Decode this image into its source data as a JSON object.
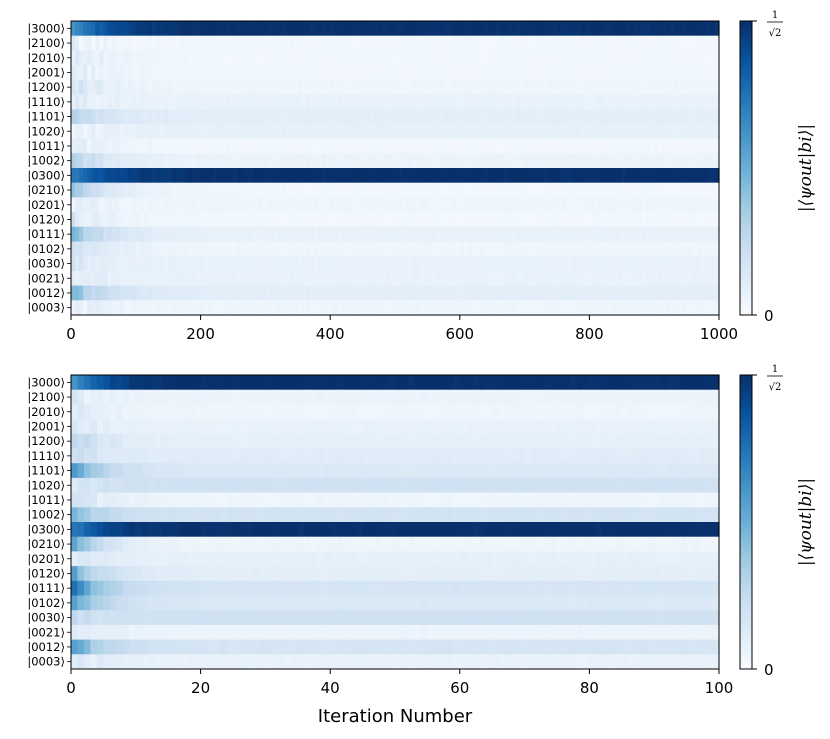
{
  "chart_data": [
    {
      "type": "heatmap",
      "title": "",
      "xlabel": "",
      "xlim": [
        0,
        1000
      ],
      "x_ticks": [
        "0",
        "200",
        "400",
        "600",
        "800",
        "1000"
      ],
      "y_categories": [
        "|3000⟩",
        "|2100⟩",
        "|2010⟩",
        "|2001⟩",
        "|1200⟩",
        "|1110⟩",
        "|1101⟩",
        "|1020⟩",
        "|1011⟩",
        "|1002⟩",
        "|0300⟩",
        "|0210⟩",
        "|0201⟩",
        "|0120⟩",
        "|0111⟩",
        "|0102⟩",
        "|0030⟩",
        "|0021⟩",
        "|0012⟩",
        "|0003⟩"
      ],
      "final_values": [
        0.71,
        0.02,
        0.02,
        0.02,
        0.03,
        0.05,
        0.07,
        0.06,
        0.02,
        0.04,
        0.71,
        0.02,
        0.03,
        0.02,
        0.05,
        0.03,
        0.05,
        0.05,
        0.07,
        0.03
      ],
      "initial_values": [
        0.45,
        0.05,
        0.1,
        0.08,
        0.12,
        0.07,
        0.2,
        0.05,
        0.08,
        0.22,
        0.5,
        0.25,
        0.06,
        0.1,
        0.3,
        0.15,
        0.1,
        0.08,
        0.3,
        0.06
      ],
      "colorbar": {
        "label": "|⟨ψout|bi⟩|",
        "min_label": "0",
        "max_label_num": "1",
        "max_label_den": "√2",
        "range": [
          0,
          0.7071
        ],
        "colormap": "Blues"
      }
    },
    {
      "type": "heatmap",
      "title": "",
      "xlabel": "Iteration Number",
      "xlim": [
        0,
        100
      ],
      "x_ticks": [
        "0",
        "20",
        "40",
        "60",
        "80",
        "100"
      ],
      "y_categories": [
        "|3000⟩",
        "|2100⟩",
        "|2010⟩",
        "|2001⟩",
        "|1200⟩",
        "|1110⟩",
        "|1101⟩",
        "|1020⟩",
        "|1011⟩",
        "|1002⟩",
        "|0300⟩",
        "|0210⟩",
        "|0201⟩",
        "|0120⟩",
        "|0111⟩",
        "|0102⟩",
        "|0030⟩",
        "|0021⟩",
        "|0012⟩",
        "|0003⟩"
      ],
      "final_values": [
        0.71,
        0.04,
        0.03,
        0.05,
        0.06,
        0.08,
        0.1,
        0.14,
        0.03,
        0.13,
        0.71,
        0.03,
        0.06,
        0.07,
        0.12,
        0.1,
        0.14,
        0.04,
        0.12,
        0.05
      ],
      "initial_values": [
        0.45,
        0.08,
        0.12,
        0.1,
        0.2,
        0.15,
        0.4,
        0.12,
        0.15,
        0.32,
        0.5,
        0.35,
        0.1,
        0.35,
        0.5,
        0.4,
        0.15,
        0.1,
        0.38,
        0.1
      ],
      "colorbar": {
        "label": "|⟨ψout|bi⟩|",
        "min_label": "0",
        "max_label_num": "1",
        "max_label_den": "√2",
        "range": [
          0,
          0.7071
        ],
        "colormap": "Blues"
      }
    }
  ]
}
